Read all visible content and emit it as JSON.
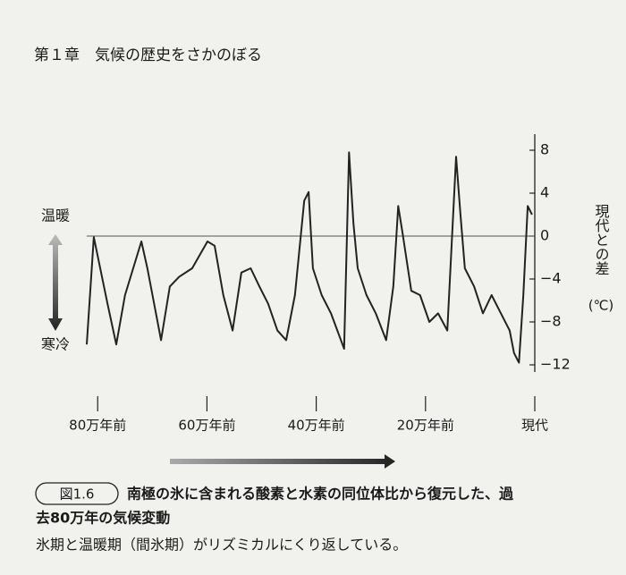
{
  "header": {
    "title": "第１章　気候の歴史をさかのぼる"
  },
  "chart_data": {
    "type": "line",
    "y_axis_label": "現代との差",
    "y_axis_unit": "(℃)",
    "warm_label": "温暖",
    "cold_label": "寒冷",
    "color": "#222222",
    "x": [
      -82,
      -80.7,
      -78.2,
      -76.6,
      -75,
      -72,
      -70.9,
      -68.4,
      -66.8,
      -65.1,
      -62.7,
      -59.9,
      -58.6,
      -57,
      -55.3,
      -53.7,
      -52,
      -50.4,
      -48.8,
      -47.1,
      -45.5,
      -43.9,
      -42.2,
      -41.4,
      -40.6,
      -39,
      -37.3,
      -34.9,
      -34,
      -33.2,
      -32.4,
      -30.8,
      -29.1,
      -27.2,
      -25.9,
      -25,
      -24.2,
      -22.6,
      -21,
      -19.3,
      -17.7,
      -16,
      -14.4,
      -13.6,
      -12.8,
      -11.1,
      -9.5,
      -7.9,
      -6.2,
      -4.6,
      -3.8,
      -2.9,
      -2.1,
      -1.3,
      -0.5
    ],
    "values": [
      -10.1,
      -0.1,
      -6.3,
      -10.1,
      -5.5,
      -0.5,
      -3,
      -9.7,
      -4.7,
      -3.8,
      -3,
      -0.5,
      -0.9,
      -5.5,
      -8.8,
      -3.4,
      -3,
      -4.7,
      -6.3,
      -8.8,
      -9.7,
      -5.5,
      3.3,
      4.1,
      -3,
      -5.5,
      -7.2,
      -10.5,
      7.8,
      1.2,
      -3,
      -5.5,
      -7.2,
      -9.7,
      -4.7,
      2.8,
      0.3,
      -5.1,
      -5.5,
      -8,
      -7.2,
      -8.8,
      7.4,
      2,
      -3,
      -4.7,
      -7.2,
      -5.5,
      -7.2,
      -8.8,
      -10.9,
      -11.8,
      -5.5,
      2.8,
      2
    ],
    "xlim": [
      -82,
      0
    ],
    "xticks": [
      {
        "value": -80,
        "label": "80万年前"
      },
      {
        "value": -60,
        "label": "60万年前"
      },
      {
        "value": -40,
        "label": "40万年前"
      },
      {
        "value": -20,
        "label": "20万年前"
      },
      {
        "value": 0,
        "label": "現代"
      }
    ],
    "ylim": [
      -13,
      9
    ],
    "yticks": [
      8,
      4,
      0,
      {
        "value": -4,
        "label": "−4"
      },
      {
        "value": -8,
        "label": "−8"
      },
      {
        "value": -12,
        "label": "−12"
      }
    ],
    "reference_line": 0
  },
  "caption": {
    "figure_label": "図1.6",
    "title_lines": [
      "南極の氷に含まれる酸素と水素の同位体比から復元した、過",
      "去80万年の気候変動"
    ],
    "text": "氷期と温暖期（間氷期）がリズミカルにくり返している。"
  }
}
